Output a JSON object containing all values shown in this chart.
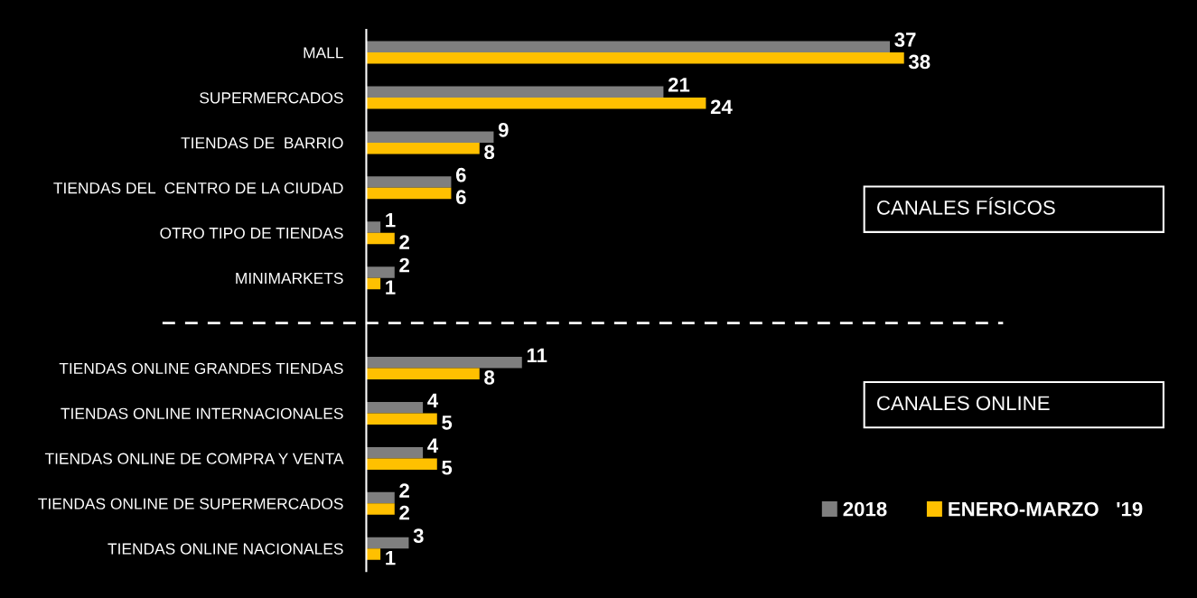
{
  "chart_data": {
    "type": "bar",
    "orientation": "horizontal",
    "categories": [
      "MALL",
      "SUPERMERCADOS",
      "TIENDAS DE  BARRIO",
      "TIENDAS DEL  CENTRO DE LA CIUDAD",
      "OTRO TIPO DE TIENDAS",
      "MINIMARKETS",
      null,
      "TIENDAS ONLINE GRANDES TIENDAS",
      "TIENDAS ONLINE INTERNACIONALES",
      "TIENDAS ONLINE DE COMPRA Y VENTA",
      "TIENDAS ONLINE DE SUPERMERCADOS",
      "TIENDAS ONLINE NACIONALES"
    ],
    "series": [
      {
        "name": "2018",
        "color": "#7f7f7f",
        "values": [
          37,
          21,
          9,
          6,
          1,
          2,
          null,
          11,
          4,
          4,
          2,
          3
        ]
      },
      {
        "name": "ENERO-MARZO   '19",
        "color": "#ffc000",
        "values": [
          38,
          24,
          8,
          6,
          2,
          1,
          null,
          8,
          5,
          5,
          2,
          1
        ]
      }
    ],
    "xlim": [
      0,
      45
    ],
    "tick_labels": "y",
    "data_labels": true,
    "legend": "bottom right",
    "ref_lines": [
      {
        "axis": "y",
        "line_style": "dashed",
        "color": "#ffffff"
      }
    ],
    "annotations": [
      "CANALES FÍSICOS",
      "CANALES ONLINE"
    ]
  }
}
